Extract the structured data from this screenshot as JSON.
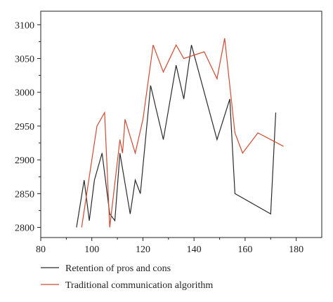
{
  "chart_data": {
    "type": "line",
    "title": "",
    "xlabel": "",
    "ylabel": "",
    "xlim": [
      80,
      190
    ],
    "ylim": [
      2785,
      3120
    ],
    "x_ticks": [
      80,
      100,
      120,
      140,
      160,
      180
    ],
    "y_ticks": [
      2800,
      2850,
      2900,
      2950,
      3000,
      3050,
      3100
    ],
    "grid": false,
    "legend_position": "bottom",
    "series": [
      {
        "name": "Retention of pros and cons",
        "color": "#2b2b2b",
        "points": [
          [
            94,
            2800
          ],
          [
            97,
            2870
          ],
          [
            99,
            2810
          ],
          [
            101,
            2870
          ],
          [
            104,
            2910
          ],
          [
            107,
            2820
          ],
          [
            109,
            2810
          ],
          [
            111,
            2910
          ],
          [
            115,
            2820
          ],
          [
            117,
            2870
          ],
          [
            119,
            2850
          ],
          [
            123,
            3010
          ],
          [
            128,
            2930
          ],
          [
            133,
            3040
          ],
          [
            136,
            2990
          ],
          [
            139,
            3070
          ],
          [
            149,
            2930
          ],
          [
            154,
            2990
          ],
          [
            156,
            2850
          ],
          [
            170,
            2820
          ],
          [
            172,
            2970
          ]
        ]
      },
      {
        "name": "Traditional communication algorithm",
        "color": "#d04a32",
        "points": [
          [
            96,
            2800
          ],
          [
            102,
            2950
          ],
          [
            105,
            2970
          ],
          [
            107,
            2800
          ],
          [
            111,
            2930
          ],
          [
            112,
            2910
          ],
          [
            113,
            2960
          ],
          [
            117,
            2910
          ],
          [
            120,
            2960
          ],
          [
            124,
            3070
          ],
          [
            128,
            3030
          ],
          [
            133,
            3070
          ],
          [
            136,
            3050
          ],
          [
            144,
            3060
          ],
          [
            149,
            3020
          ],
          [
            152,
            3080
          ],
          [
            156,
            2940
          ],
          [
            159,
            2910
          ],
          [
            165,
            2940
          ],
          [
            175,
            2920
          ]
        ]
      }
    ]
  }
}
